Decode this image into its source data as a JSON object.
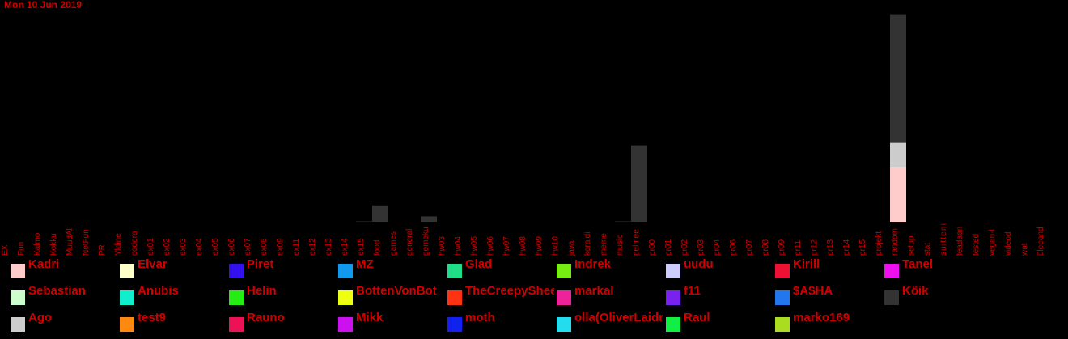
{
  "date": "Mon 10 Jun 2019",
  "chart_data": {
    "type": "bar",
    "stacked": true,
    "categories": [
      "EX",
      "Fun",
      "Kalmo",
      "Kokku",
      "MuudAl",
      "NotFun",
      "PR",
      "Yldine",
      "codera",
      "ex01",
      "ex02",
      "ex03",
      "ex04",
      "ex05",
      "ex06",
      "ex07",
      "ex08",
      "ex09",
      "ex11",
      "ex12",
      "ex13",
      "ex14",
      "ex15",
      "food",
      "games",
      "general",
      "gomoku",
      "hw03",
      "hw04",
      "hw05",
      "hw06",
      "hw07",
      "hw08",
      "hw09",
      "hw10",
      "java",
      "koraldi",
      "meme",
      "music",
      "pelmee",
      "pr00",
      "pr01",
      "pr02",
      "pr03",
      "pr04",
      "pr06",
      "pr07",
      "pr08",
      "pr09",
      "pr11",
      "pr12",
      "pr13",
      "pr14",
      "pr15",
      "projekt",
      "random",
      "setup",
      "stat",
      "suitteni",
      "teadaan",
      "tested",
      "vegan-l",
      "videod",
      "wat",
      "üleeand"
    ],
    "series": [
      {
        "name": "Kadri",
        "color": "#ffcccc",
        "values": [
          0,
          0,
          0,
          0,
          0,
          0,
          0,
          0,
          0,
          0,
          0,
          0,
          0,
          0,
          0,
          0,
          0,
          0,
          0,
          0,
          0,
          0,
          0,
          0,
          0,
          0,
          0,
          0,
          0,
          0,
          0,
          0,
          0,
          0,
          0,
          0,
          0,
          0,
          0,
          0,
          0,
          0,
          0,
          0,
          0,
          0,
          0,
          0,
          0,
          0,
          0,
          0,
          0,
          0,
          0,
          45,
          0,
          0,
          0,
          0,
          0,
          0,
          0,
          0,
          0
        ]
      },
      {
        "name": "Ago",
        "color": "#cccccc",
        "values": [
          0,
          0,
          0,
          0,
          0,
          0,
          0,
          0,
          0,
          0,
          0,
          0,
          0,
          0,
          0,
          0,
          0,
          0,
          0,
          0,
          0,
          0,
          0,
          0,
          0,
          0,
          0,
          0,
          0,
          0,
          0,
          0,
          0,
          0,
          0,
          0,
          0,
          0,
          0,
          0,
          0,
          0,
          0,
          0,
          0,
          0,
          0,
          0,
          0,
          0,
          0,
          0,
          0,
          0,
          0,
          20,
          0,
          0,
          0,
          0,
          0,
          0,
          0,
          0,
          0
        ]
      },
      {
        "name": "Köik",
        "color": "#333333",
        "values": [
          0,
          0,
          0,
          0,
          0,
          0,
          0,
          0,
          0,
          0,
          0,
          0,
          0,
          0,
          0,
          0,
          0,
          0,
          0,
          0,
          0,
          0,
          1,
          14,
          0,
          0,
          5,
          0,
          0,
          0,
          0,
          0,
          0,
          0,
          0,
          0,
          0,
          0,
          1,
          63,
          0,
          0,
          0,
          0,
          0,
          0,
          0,
          0,
          0,
          0,
          0,
          0,
          0,
          0,
          0,
          105,
          0,
          0,
          0,
          0,
          0,
          0,
          0,
          0,
          0
        ]
      }
    ],
    "ylim": [
      0,
      175
    ],
    "legend": [
      {
        "name": "Kadri",
        "color": "#ffcccc"
      },
      {
        "name": "Elvar",
        "color": "#ffffcc"
      },
      {
        "name": "Piret",
        "color": "#3311ee"
      },
      {
        "name": "MZ",
        "color": "#1199ee"
      },
      {
        "name": "Glad",
        "color": "#22dd88"
      },
      {
        "name": "Indrek",
        "color": "#77ee11"
      },
      {
        "name": "uudu",
        "color": "#ccccff"
      },
      {
        "name": "Kirill",
        "color": "#ee1133"
      },
      {
        "name": "Tanel",
        "color": "#ee11ee"
      },
      {
        "name": "Sebastian",
        "color": "#ccffcc"
      },
      {
        "name": "Anubis",
        "color": "#11eecc"
      },
      {
        "name": "Helin",
        "color": "#22ee11"
      },
      {
        "name": "BottenVonBot",
        "color": "#eeff11"
      },
      {
        "name": "TheCreepySheep",
        "color": "#ff3311"
      },
      {
        "name": "markal",
        "color": "#ee2299"
      },
      {
        "name": "f11",
        "color": "#7722ee"
      },
      {
        "name": "$A$HA",
        "color": "#2277ee"
      },
      {
        "name": "Köik",
        "color": "#333333"
      },
      {
        "name": "Ago",
        "color": "#cccccc"
      },
      {
        "name": "test9",
        "color": "#ff8811"
      },
      {
        "name": "Rauno",
        "color": "#ee1155"
      },
      {
        "name": "Mikk",
        "color": "#cc11ee"
      },
      {
        "name": "moth",
        "color": "#1122ee"
      },
      {
        "name": "olla(OliverLaidma)",
        "color": "#22ddee"
      },
      {
        "name": "Raul",
        "color": "#11ee44"
      },
      {
        "name": "marko169",
        "color": "#aadd22"
      }
    ]
  }
}
